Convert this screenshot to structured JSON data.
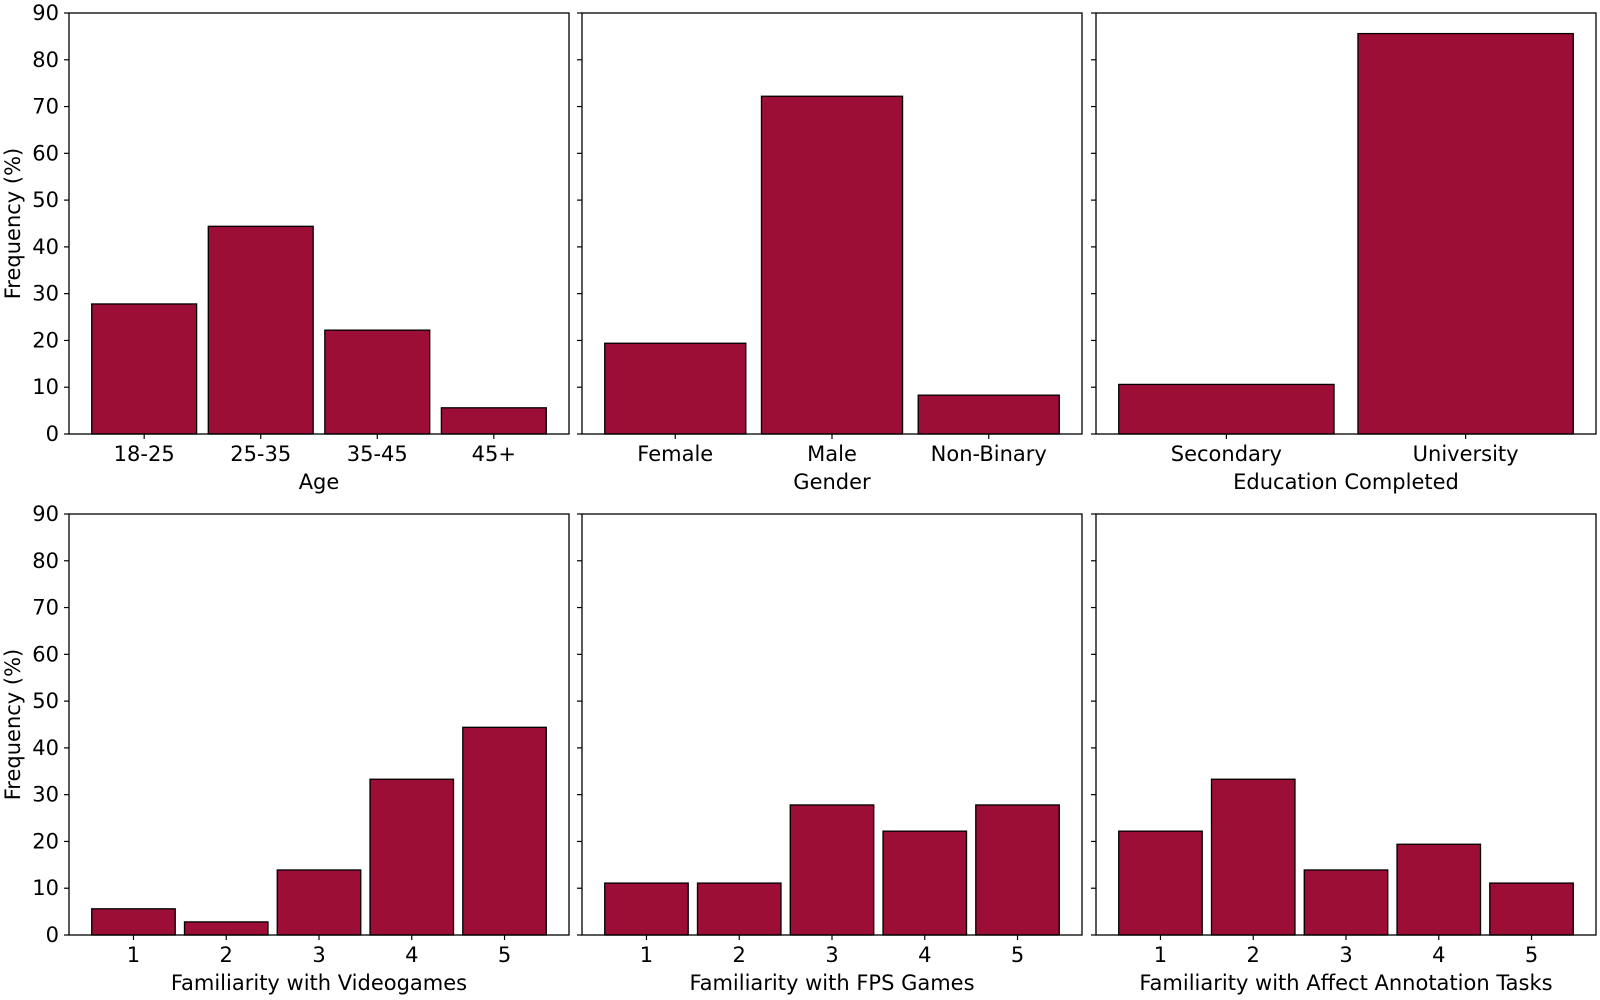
{
  "chart_data": [
    {
      "type": "bar",
      "categories": [
        "18-25",
        "25-35",
        "35-45",
        "45+"
      ],
      "values": [
        27.8,
        44.4,
        22.2,
        5.6
      ],
      "xlabel": "Age",
      "ylabel": "Frequency (%)",
      "ylim": [
        0,
        90
      ],
      "yticks": [
        0,
        10,
        20,
        30,
        40,
        50,
        60,
        70,
        80,
        90
      ],
      "grid": false
    },
    {
      "type": "bar",
      "categories": [
        "Female",
        "Male",
        "Non-Binary"
      ],
      "values": [
        19.4,
        72.2,
        8.3
      ],
      "xlabel": "Gender",
      "ylabel": "",
      "ylim": [
        0,
        90
      ],
      "grid": false
    },
    {
      "type": "bar",
      "categories": [
        "Secondary",
        "University"
      ],
      "values": [
        10.6,
        85.6
      ],
      "xlabel": "Education Completed",
      "ylabel": "",
      "ylim": [
        0,
        90
      ],
      "grid": false
    },
    {
      "type": "bar",
      "categories": [
        "1",
        "2",
        "3",
        "4",
        "5"
      ],
      "values": [
        5.6,
        2.8,
        13.9,
        33.3,
        44.4
      ],
      "xlabel": "Familiarity with Videogames",
      "ylabel": "Frequency (%)",
      "ylim": [
        0,
        90
      ],
      "yticks": [
        0,
        10,
        20,
        30,
        40,
        50,
        60,
        70,
        80,
        90
      ],
      "grid": false
    },
    {
      "type": "bar",
      "categories": [
        "1",
        "2",
        "3",
        "4",
        "5"
      ],
      "values": [
        11.1,
        11.1,
        27.8,
        22.2,
        27.8
      ],
      "xlabel": "Familiarity with FPS Games",
      "ylabel": "",
      "ylim": [
        0,
        90
      ],
      "grid": false
    },
    {
      "type": "bar",
      "categories": [
        "1",
        "2",
        "3",
        "4",
        "5"
      ],
      "values": [
        22.2,
        33.3,
        13.9,
        19.4,
        11.1
      ],
      "xlabel": "Familiarity with Affect Annotation Tasks",
      "ylabel": "",
      "ylim": [
        0,
        90
      ],
      "grid": false
    }
  ],
  "colors": {
    "bar_fill": "#9c0e35",
    "bar_edge": "#000000",
    "axes": "#000000",
    "background": "#ffffff"
  }
}
